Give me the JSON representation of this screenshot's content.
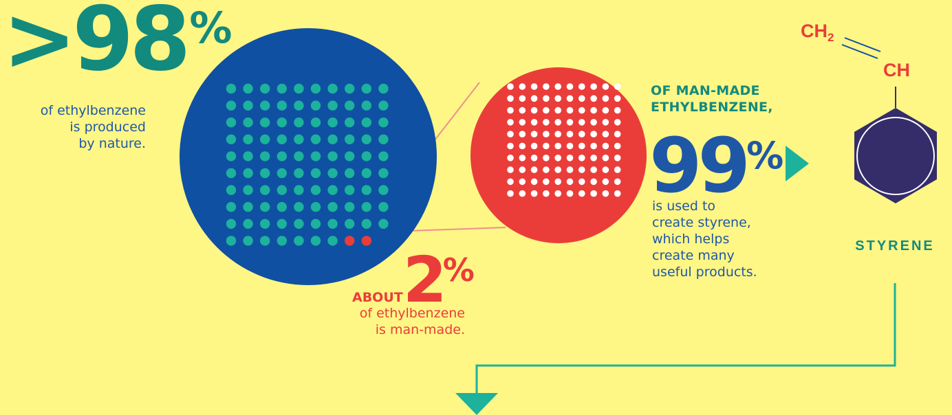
{
  "stat_nature": {
    "value": ">98",
    "unit": "%",
    "caption_lines": [
      "of ethylbenzene",
      "is produced",
      "by nature."
    ]
  },
  "stat_manmade": {
    "prefix": "ABOUT",
    "value": "2",
    "unit": "%",
    "caption_lines": [
      "of ethylbenzene",
      "is man-made."
    ]
  },
  "stat_styrene": {
    "heading_lines": [
      "OF MAN-MADE",
      "ETHYLBENZENE,"
    ],
    "value": "99",
    "unit": "%",
    "caption_lines": [
      "is used to",
      "create styrene,",
      "which helps",
      "create many",
      "useful products."
    ]
  },
  "molecule": {
    "name": "STYRENE",
    "group_top": "CH",
    "group_top_subscript": "2",
    "group_mid": "CH"
  },
  "colors": {
    "background": "#fef685",
    "blue": "#1050a3",
    "teal": "#1cb29c",
    "red": "#ea3d3a",
    "purple": "#352d6a",
    "pink_line": "#ef8f8c"
  },
  "dot_grids": {
    "large_circle": {
      "rows": 10,
      "cols": 10,
      "red_dots": 2
    },
    "zoom_circle": {
      "rows": 10,
      "cols": 10
    }
  }
}
